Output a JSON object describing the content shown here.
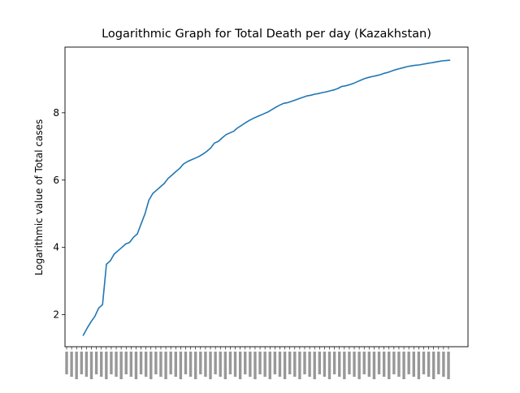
{
  "chart_data": {
    "type": "line",
    "title": "Logarithmic Graph for Total Death per day (Kazakhstan)",
    "xlabel": "",
    "ylabel": "Logarithmic value of Total cases",
    "ylim": [
      1.05,
      9.95
    ],
    "yticks": [
      2,
      4,
      6,
      8
    ],
    "grid": false,
    "legend": "none",
    "series_color": "#1f77b4",
    "x_tick_labels_note": "dense rotated date labels, illegible",
    "series": [
      {
        "values": [
          1.39,
          1.6,
          1.79,
          1.95,
          2.2,
          2.3,
          3.5,
          3.6,
          3.8,
          3.9,
          4.0,
          4.1,
          4.15,
          4.3,
          4.4,
          4.7,
          5.0,
          5.4,
          5.6,
          5.7,
          5.8,
          5.9,
          6.05,
          6.15,
          6.25,
          6.35,
          6.48,
          6.55,
          6.6,
          6.65,
          6.7,
          6.77,
          6.85,
          6.95,
          7.1,
          7.15,
          7.25,
          7.35,
          7.4,
          7.45,
          7.55,
          7.62,
          7.7,
          7.77,
          7.83,
          7.88,
          7.93,
          7.98,
          8.03,
          8.1,
          8.17,
          8.23,
          8.28,
          8.3,
          8.34,
          8.38,
          8.42,
          8.46,
          8.5,
          8.52,
          8.55,
          8.57,
          8.6,
          8.62,
          8.65,
          8.68,
          8.72,
          8.78,
          8.8,
          8.83,
          8.87,
          8.92,
          8.97,
          9.02,
          9.05,
          9.08,
          9.1,
          9.13,
          9.17,
          9.2,
          9.24,
          9.28,
          9.31,
          9.34,
          9.37,
          9.39,
          9.41,
          9.42,
          9.44,
          9.46,
          9.48,
          9.5,
          9.52,
          9.54,
          9.55,
          9.56
        ]
      }
    ]
  }
}
